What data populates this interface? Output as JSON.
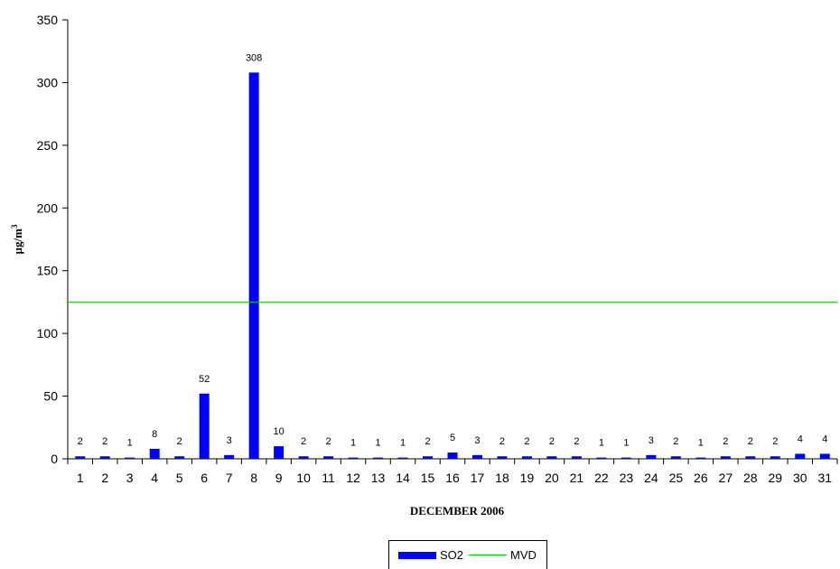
{
  "chart_data": {
    "type": "bar",
    "xlabel": "DECEMBER 2006",
    "ylabel": "µg/m",
    "ylabel_sup": "3",
    "ylim": [
      0,
      350
    ],
    "yticks": [
      0,
      50,
      100,
      150,
      200,
      250,
      300,
      350
    ],
    "categories": [
      "1",
      "2",
      "3",
      "4",
      "5",
      "6",
      "7",
      "8",
      "9",
      "10",
      "11",
      "12",
      "13",
      "14",
      "15",
      "16",
      "17",
      "18",
      "19",
      "20",
      "21",
      "22",
      "23",
      "24",
      "25",
      "26",
      "27",
      "28",
      "29",
      "30",
      "31"
    ],
    "series": [
      {
        "name": "SO2",
        "color": "#0000ff",
        "values": [
          2,
          2,
          1,
          8,
          2,
          52,
          3,
          308,
          10,
          2,
          2,
          1,
          1,
          1,
          2,
          5,
          3,
          2,
          2,
          2,
          2,
          1,
          1,
          3,
          2,
          1,
          2,
          2,
          2,
          4,
          4
        ]
      }
    ],
    "reference_line": {
      "name": "MVD",
      "value": 125,
      "color": "#00cc00"
    },
    "grid": false,
    "legend_position": "bottom-center"
  }
}
